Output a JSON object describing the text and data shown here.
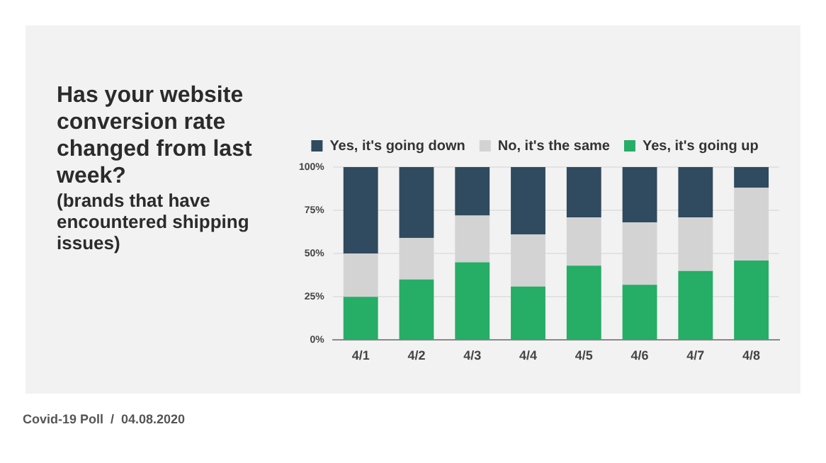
{
  "chart_data": {
    "type": "bar",
    "title": "Has your website conversion rate changed from last week?",
    "subtitle": "(brands that have encountered shipping issues)",
    "annotations": [
      "Covid-19 Poll  /  04.08.2020"
    ],
    "categories": [
      "4/1",
      "4/2",
      "4/3",
      "4/4",
      "4/5",
      "4/6",
      "4/7",
      "4/8"
    ],
    "series": [
      {
        "name": "Yes, it's going up",
        "color": "#26ad66",
        "values": [
          25,
          35,
          45,
          31,
          43,
          32,
          40,
          46
        ]
      },
      {
        "name": "No, it's the same",
        "color": "#d3d3d3",
        "values": [
          25,
          24,
          27,
          30,
          28,
          36,
          31,
          42
        ]
      },
      {
        "name": "Yes, it's going down",
        "color": "#304a5f",
        "values": [
          50,
          41,
          28,
          39,
          29,
          32,
          29,
          12
        ]
      }
    ],
    "stacked": true,
    "ylim": [
      0,
      100
    ],
    "yticks": [
      {
        "value": 0,
        "label": "0%"
      },
      {
        "value": 25,
        "label": "25%"
      },
      {
        "value": 50,
        "label": "50%"
      },
      {
        "value": 75,
        "label": "75%"
      },
      {
        "value": 100,
        "label": "100%"
      }
    ],
    "grid": "y",
    "legend": "top"
  }
}
